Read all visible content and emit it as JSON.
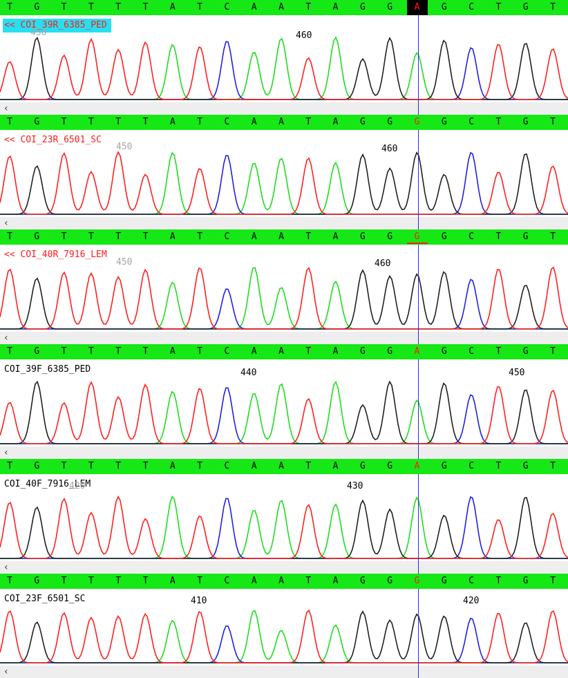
{
  "colors": {
    "base_bar": "#15e815",
    "selected_label_bg": "#26e0f2",
    "trace_A": "#1fdc1f",
    "trace_C": "#2020e0",
    "trace_G": "#202020",
    "trace_T": "#ff2020",
    "cursor": "#2b2bd6"
  },
  "scroll_left_icon": "chevron-left-icon",
  "tracks": [
    {
      "name": "<< COI_39R_6385_PED",
      "reverse": true,
      "selected": true,
      "bases": [
        "T",
        "G",
        "T",
        "T",
        "T",
        "T",
        "A",
        "T",
        "C",
        "A",
        "A",
        "T",
        "A",
        "G",
        "G",
        "A",
        "G",
        "C",
        "T",
        "G",
        "T"
      ],
      "highlight_index": 15,
      "highlight_style": "box",
      "positions": [
        {
          "value": "450",
          "ghost": true
        },
        {
          "value": "460",
          "ghost": false
        }
      ]
    },
    {
      "name": "<< COI_23R_6501_SC",
      "reverse": true,
      "selected": false,
      "bases": [
        "T",
        "G",
        "T",
        "T",
        "T",
        "T",
        "A",
        "T",
        "C",
        "A",
        "A",
        "T",
        "A",
        "G",
        "G",
        "G",
        "G",
        "C",
        "T",
        "G",
        "T"
      ],
      "highlight_index": 15,
      "highlight_style": "red",
      "positions": [
        {
          "value": "450",
          "ghost": true
        },
        {
          "value": "460",
          "ghost": false
        }
      ]
    },
    {
      "name": "<< COI_40R_7916_LEM",
      "reverse": true,
      "selected": false,
      "bases": [
        "T",
        "G",
        "T",
        "T",
        "T",
        "T",
        "A",
        "T",
        "C",
        "A",
        "A",
        "T",
        "A",
        "G",
        "G",
        "G",
        "G",
        "C",
        "T",
        "G",
        "T"
      ],
      "highlight_index": 15,
      "highlight_style": "underline",
      "positions": [
        {
          "value": "450",
          "ghost": true
        },
        {
          "value": "460",
          "ghost": false
        }
      ]
    },
    {
      "name": "COI_39F_6385_PED",
      "reverse": false,
      "selected": false,
      "bases": [
        "T",
        "G",
        "T",
        "T",
        "T",
        "T",
        "A",
        "T",
        "C",
        "A",
        "A",
        "T",
        "A",
        "G",
        "G",
        "A",
        "G",
        "C",
        "T",
        "G",
        "T"
      ],
      "highlight_index": 15,
      "highlight_style": "red",
      "positions": [
        {
          "value": "440",
          "ghost": false
        },
        {
          "value": "450",
          "ghost": false
        }
      ]
    },
    {
      "name": "COI_40F_7916_LEM",
      "reverse": false,
      "selected": false,
      "bases": [
        "T",
        "G",
        "T",
        "T",
        "T",
        "T",
        "A",
        "T",
        "C",
        "A",
        "A",
        "T",
        "A",
        "G",
        "G",
        "A",
        "G",
        "C",
        "T",
        "G",
        "T"
      ],
      "highlight_index": 15,
      "highlight_style": "red",
      "positions": [
        {
          "value": "420",
          "ghost": true
        },
        {
          "value": "430",
          "ghost": false
        }
      ]
    },
    {
      "name": "COI_23F_6501_SC",
      "reverse": false,
      "selected": false,
      "bases": [
        "T",
        "G",
        "T",
        "T",
        "T",
        "T",
        "A",
        "T",
        "C",
        "A",
        "A",
        "T",
        "A",
        "G",
        "G",
        "G",
        "G",
        "C",
        "T",
        "G",
        "T"
      ],
      "highlight_index": 15,
      "highlight_style": "red",
      "positions": [
        {
          "value": "410",
          "ghost": false
        },
        {
          "value": "420",
          "ghost": false
        }
      ]
    }
  ]
}
